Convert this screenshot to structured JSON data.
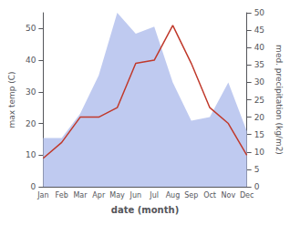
{
  "chart_data": {
    "type": "line",
    "xlabel": "date (month)",
    "ylabel": "max temp (C)",
    "y2label": "med. precipitation (kg/m2)",
    "categories": [
      "Jan",
      "Feb",
      "Mar",
      "Apr",
      "May",
      "Jun",
      "Jul",
      "Aug",
      "Sep",
      "Oct",
      "Nov",
      "Dec"
    ],
    "series": [
      {
        "type": "area",
        "axis": "y2",
        "color": "#b8c4ee",
        "values": [
          14,
          14,
          21,
          32,
          50,
          44,
          46,
          30,
          19,
          20,
          30,
          16
        ]
      },
      {
        "type": "line",
        "color": "#c0392b",
        "values": [
          9,
          14,
          22,
          22,
          25,
          39,
          40,
          51,
          39,
          25,
          20,
          10
        ]
      }
    ],
    "ylim": [
      0,
      55
    ],
    "yticks": [
      0,
      10,
      20,
      30,
      40,
      50
    ],
    "y2lim": [
      0,
      50
    ],
    "y2ticks": [
      0,
      5,
      10,
      15,
      20,
      25,
      30,
      35,
      40,
      45,
      50
    ],
    "grid": false
  }
}
